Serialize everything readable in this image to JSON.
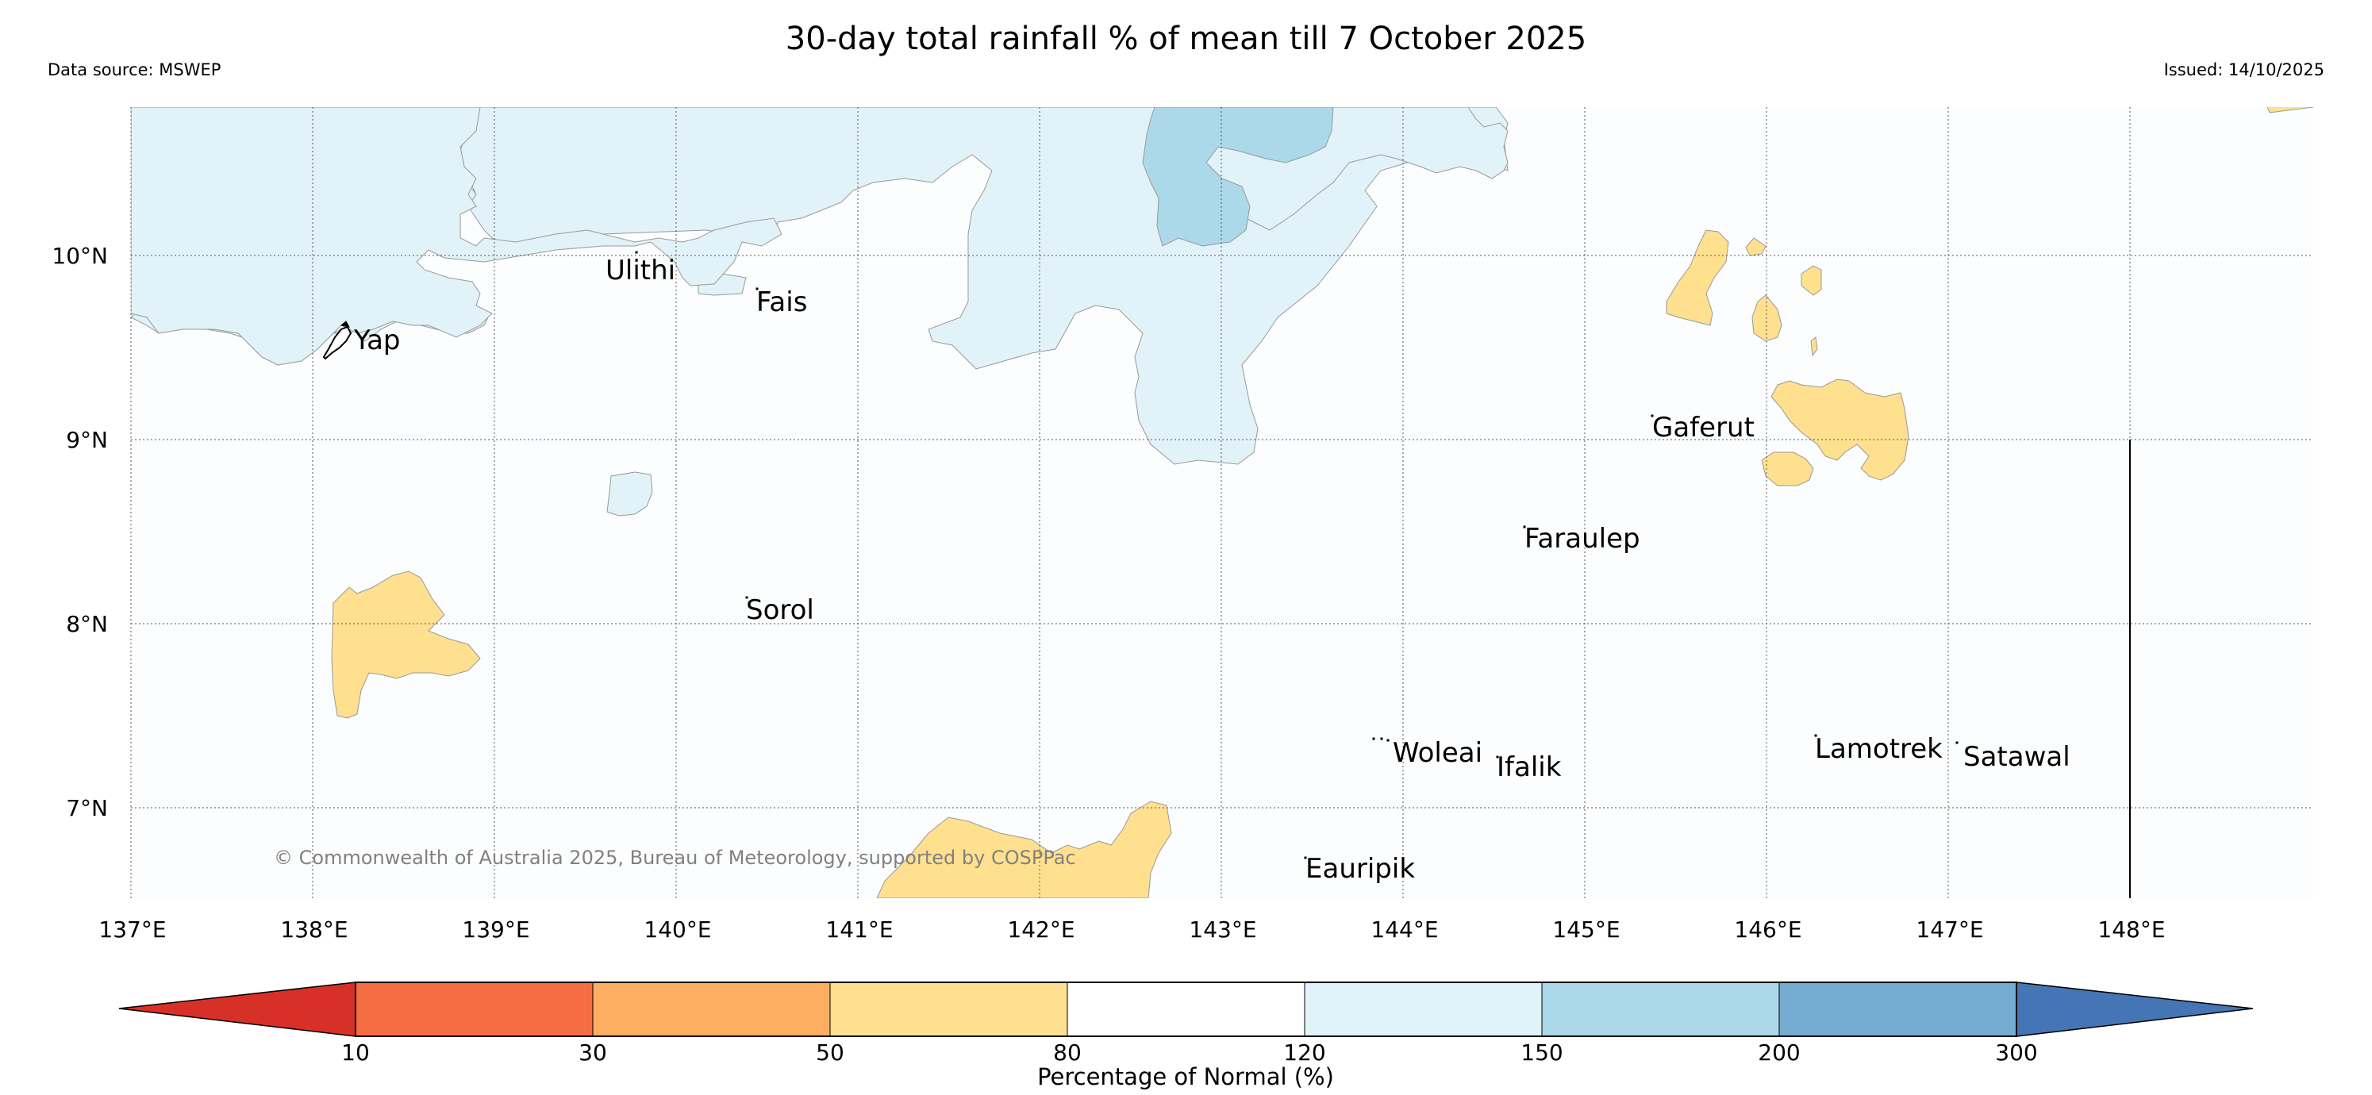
{
  "header": {
    "title": "30-day total rainfall % of mean till 7 October 2025",
    "data_source": "Data source: MSWEP",
    "issued": "Issued: 14/10/2025"
  },
  "map": {
    "lat_labels": [
      "10°N",
      "9°N",
      "8°N",
      "7°N"
    ],
    "lon_labels": [
      "137°E",
      "138°E",
      "139°E",
      "140°E",
      "141°E",
      "142°E",
      "143°E",
      "144°E",
      "145°E",
      "146°E",
      "147°E",
      "148°E"
    ],
    "copyright": "© Commonwealth of Australia 2025, Bureau of Meteorology, supported by COSPPac",
    "places": {
      "yap": "Yap",
      "ulithi": "Ulithi",
      "fais": "Fais",
      "gaferut": "Gaferut",
      "faraulep": "Faraulep",
      "sorol": "Sorol",
      "woleai": "Woleai",
      "ifalik": "Ifalik",
      "lamotrek": "Lamotrek",
      "satawal": "Satawal",
      "eauripik": "Eauripik"
    },
    "fill_colors": {
      "pct_50_80": "#FFE08F",
      "pct_120_150": "#E1F3F8",
      "pct_150_200": "#ABD9E9"
    }
  },
  "colorbar": {
    "title": "Percentage of Normal (%)",
    "tick_labels": [
      "10",
      "30",
      "50",
      "80",
      "120",
      "150",
      "200",
      "300"
    ],
    "colors": [
      "#D73027",
      "#F46D43",
      "#FDAE61",
      "#FEE090",
      "#FFFFFF",
      "#E0F3F8",
      "#ABD9E9",
      "#74ADD1",
      "#4575B4"
    ]
  }
}
